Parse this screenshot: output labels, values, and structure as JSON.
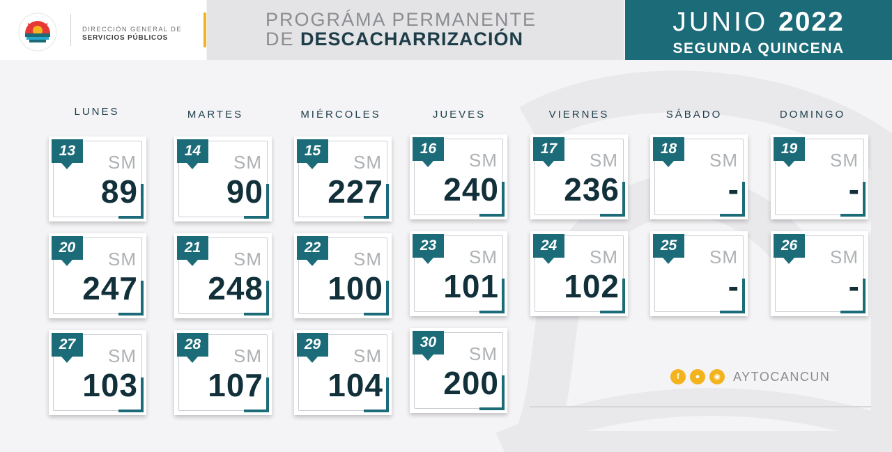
{
  "header": {
    "department_line1": "DIRECCIÓN GENERAL DE",
    "department_line2": "SERVICIOS PÚBLICOS",
    "title_line1": "PROGRÁMA PERMANENTE",
    "title_line2_light": "DE",
    "title_line2_bold": "DESCACHARRIZACIÓN",
    "month": "JUNIO",
    "year": "2022",
    "period": "SEGUNDA QUINCENA"
  },
  "colors": {
    "accent_teal": "#1c6b78",
    "dark_text": "#12303a",
    "gold": "#f2b31c"
  },
  "weekdays": [
    "LUNES",
    "MARTES",
    "MIÉRCOLES",
    "JUEVES",
    "VIERNES",
    "SÁBADO",
    "DOMINGO"
  ],
  "sm_label": "SM",
  "days": [
    {
      "date": "13",
      "value": "89"
    },
    {
      "date": "14",
      "value": "90"
    },
    {
      "date": "15",
      "value": "227"
    },
    {
      "date": "16",
      "value": "240"
    },
    {
      "date": "17",
      "value": "236"
    },
    {
      "date": "18",
      "value": "-"
    },
    {
      "date": "19",
      "value": "-"
    },
    {
      "date": "20",
      "value": "247"
    },
    {
      "date": "21",
      "value": "248"
    },
    {
      "date": "22",
      "value": "100"
    },
    {
      "date": "23",
      "value": "101"
    },
    {
      "date": "24",
      "value": "102"
    },
    {
      "date": "25",
      "value": "-"
    },
    {
      "date": "26",
      "value": "-"
    },
    {
      "date": "27",
      "value": "103"
    },
    {
      "date": "28",
      "value": "107"
    },
    {
      "date": "29",
      "value": "104"
    },
    {
      "date": "30",
      "value": "200"
    }
  ],
  "social": {
    "icons": [
      "facebook-icon",
      "twitter-icon",
      "instagram-icon"
    ],
    "handle": "AYTOCANCUN"
  }
}
